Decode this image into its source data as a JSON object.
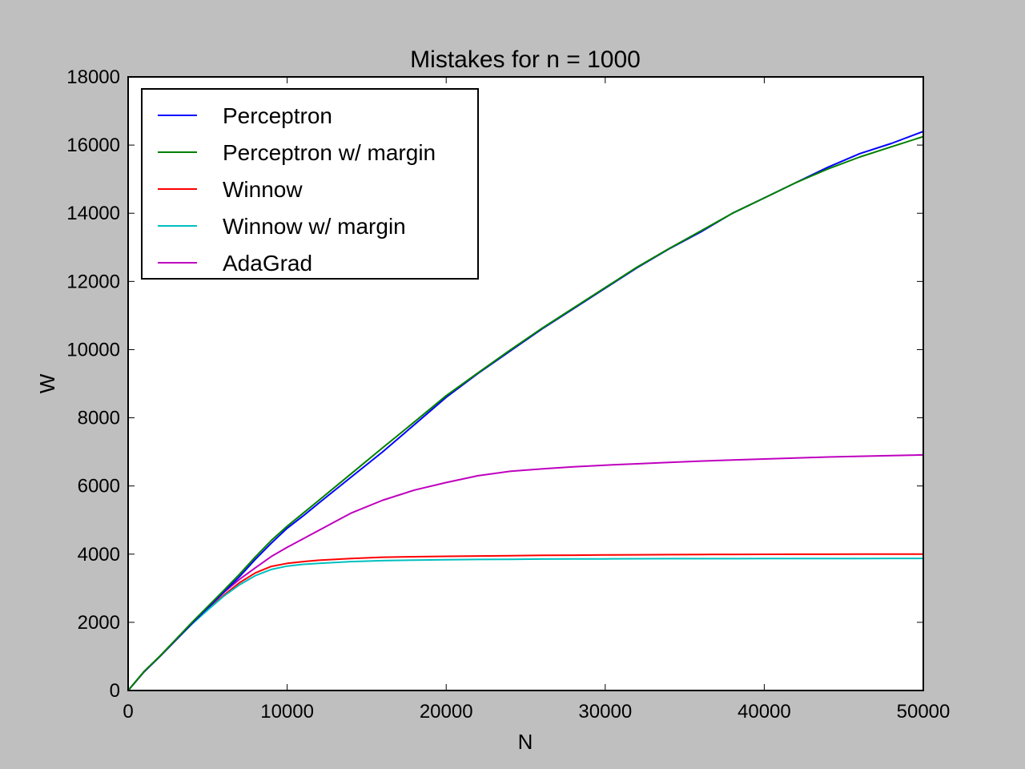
{
  "colors": {
    "figure_bg": "#bfbfbf",
    "axes_bg": "#ffffff",
    "Perceptron": "#0000ff",
    "Perceptron w/ margin": "#008000",
    "Winnow": "#ff0000",
    "Winnow w/ margin": "#00bfbf",
    "AdaGrad": "#bf00bf"
  },
  "chart_data": {
    "type": "line",
    "title": "Mistakes for n = 1000",
    "xlabel": "N",
    "ylabel": "W",
    "xlim": [
      0,
      50000
    ],
    "ylim": [
      0,
      18000
    ],
    "xticks": [
      "0",
      "10000",
      "20000",
      "30000",
      "40000",
      "50000"
    ],
    "yticks": [
      "0",
      "2000",
      "4000",
      "6000",
      "8000",
      "10000",
      "12000",
      "14000",
      "16000",
      "18000"
    ],
    "grid": false,
    "legend_position": "top-left",
    "x": [
      0,
      1000,
      2000,
      3000,
      4000,
      5000,
      6000,
      7000,
      8000,
      9000,
      10000,
      11000,
      12000,
      14000,
      16000,
      18000,
      20000,
      22000,
      24000,
      26000,
      28000,
      30000,
      32000,
      34000,
      36000,
      38000,
      40000,
      42000,
      44000,
      46000,
      48000,
      50000
    ],
    "series": [
      {
        "name": "Perceptron",
        "values": [
          0,
          550,
          1000,
          1480,
          1960,
          2420,
          2880,
          3340,
          3850,
          4320,
          4760,
          5120,
          5500,
          6250,
          7000,
          7800,
          8600,
          9300,
          9950,
          10600,
          11200,
          11800,
          12400,
          12950,
          13450,
          14000,
          14450,
          14900,
          15350,
          15750,
          16050,
          16400
        ]
      },
      {
        "name": "Perceptron w/ margin",
        "values": [
          0,
          560,
          1010,
          1500,
          1990,
          2460,
          2930,
          3410,
          3920,
          4400,
          4820,
          5200,
          5580,
          6350,
          7120,
          7880,
          8650,
          9320,
          9980,
          10620,
          11220,
          11820,
          12420,
          12960,
          13480,
          14000,
          14450,
          14900,
          15300,
          15650,
          15950,
          16250
        ]
      },
      {
        "name": "Winnow",
        "values": [
          0,
          550,
          1000,
          1480,
          1950,
          2380,
          2790,
          3160,
          3450,
          3640,
          3730,
          3780,
          3820,
          3870,
          3910,
          3925,
          3935,
          3945,
          3955,
          3965,
          3970,
          3975,
          3980,
          3985,
          3990,
          3993,
          3995,
          3997,
          3998,
          3999,
          4000,
          4000
        ]
      },
      {
        "name": "Winnow w/ margin",
        "values": [
          0,
          550,
          1000,
          1480,
          1940,
          2360,
          2760,
          3100,
          3370,
          3550,
          3650,
          3700,
          3730,
          3780,
          3810,
          3825,
          3835,
          3845,
          3850,
          3855,
          3860,
          3862,
          3865,
          3867,
          3868,
          3869,
          3870,
          3871,
          3872,
          3873,
          3874,
          3875
        ]
      },
      {
        "name": "AdaGrad",
        "values": [
          0,
          550,
          1000,
          1480,
          1960,
          2430,
          2870,
          3260,
          3600,
          3930,
          4200,
          4450,
          4700,
          5200,
          5580,
          5880,
          6100,
          6300,
          6430,
          6500,
          6560,
          6610,
          6650,
          6690,
          6730,
          6760,
          6790,
          6820,
          6850,
          6870,
          6890,
          6910
        ]
      }
    ]
  }
}
